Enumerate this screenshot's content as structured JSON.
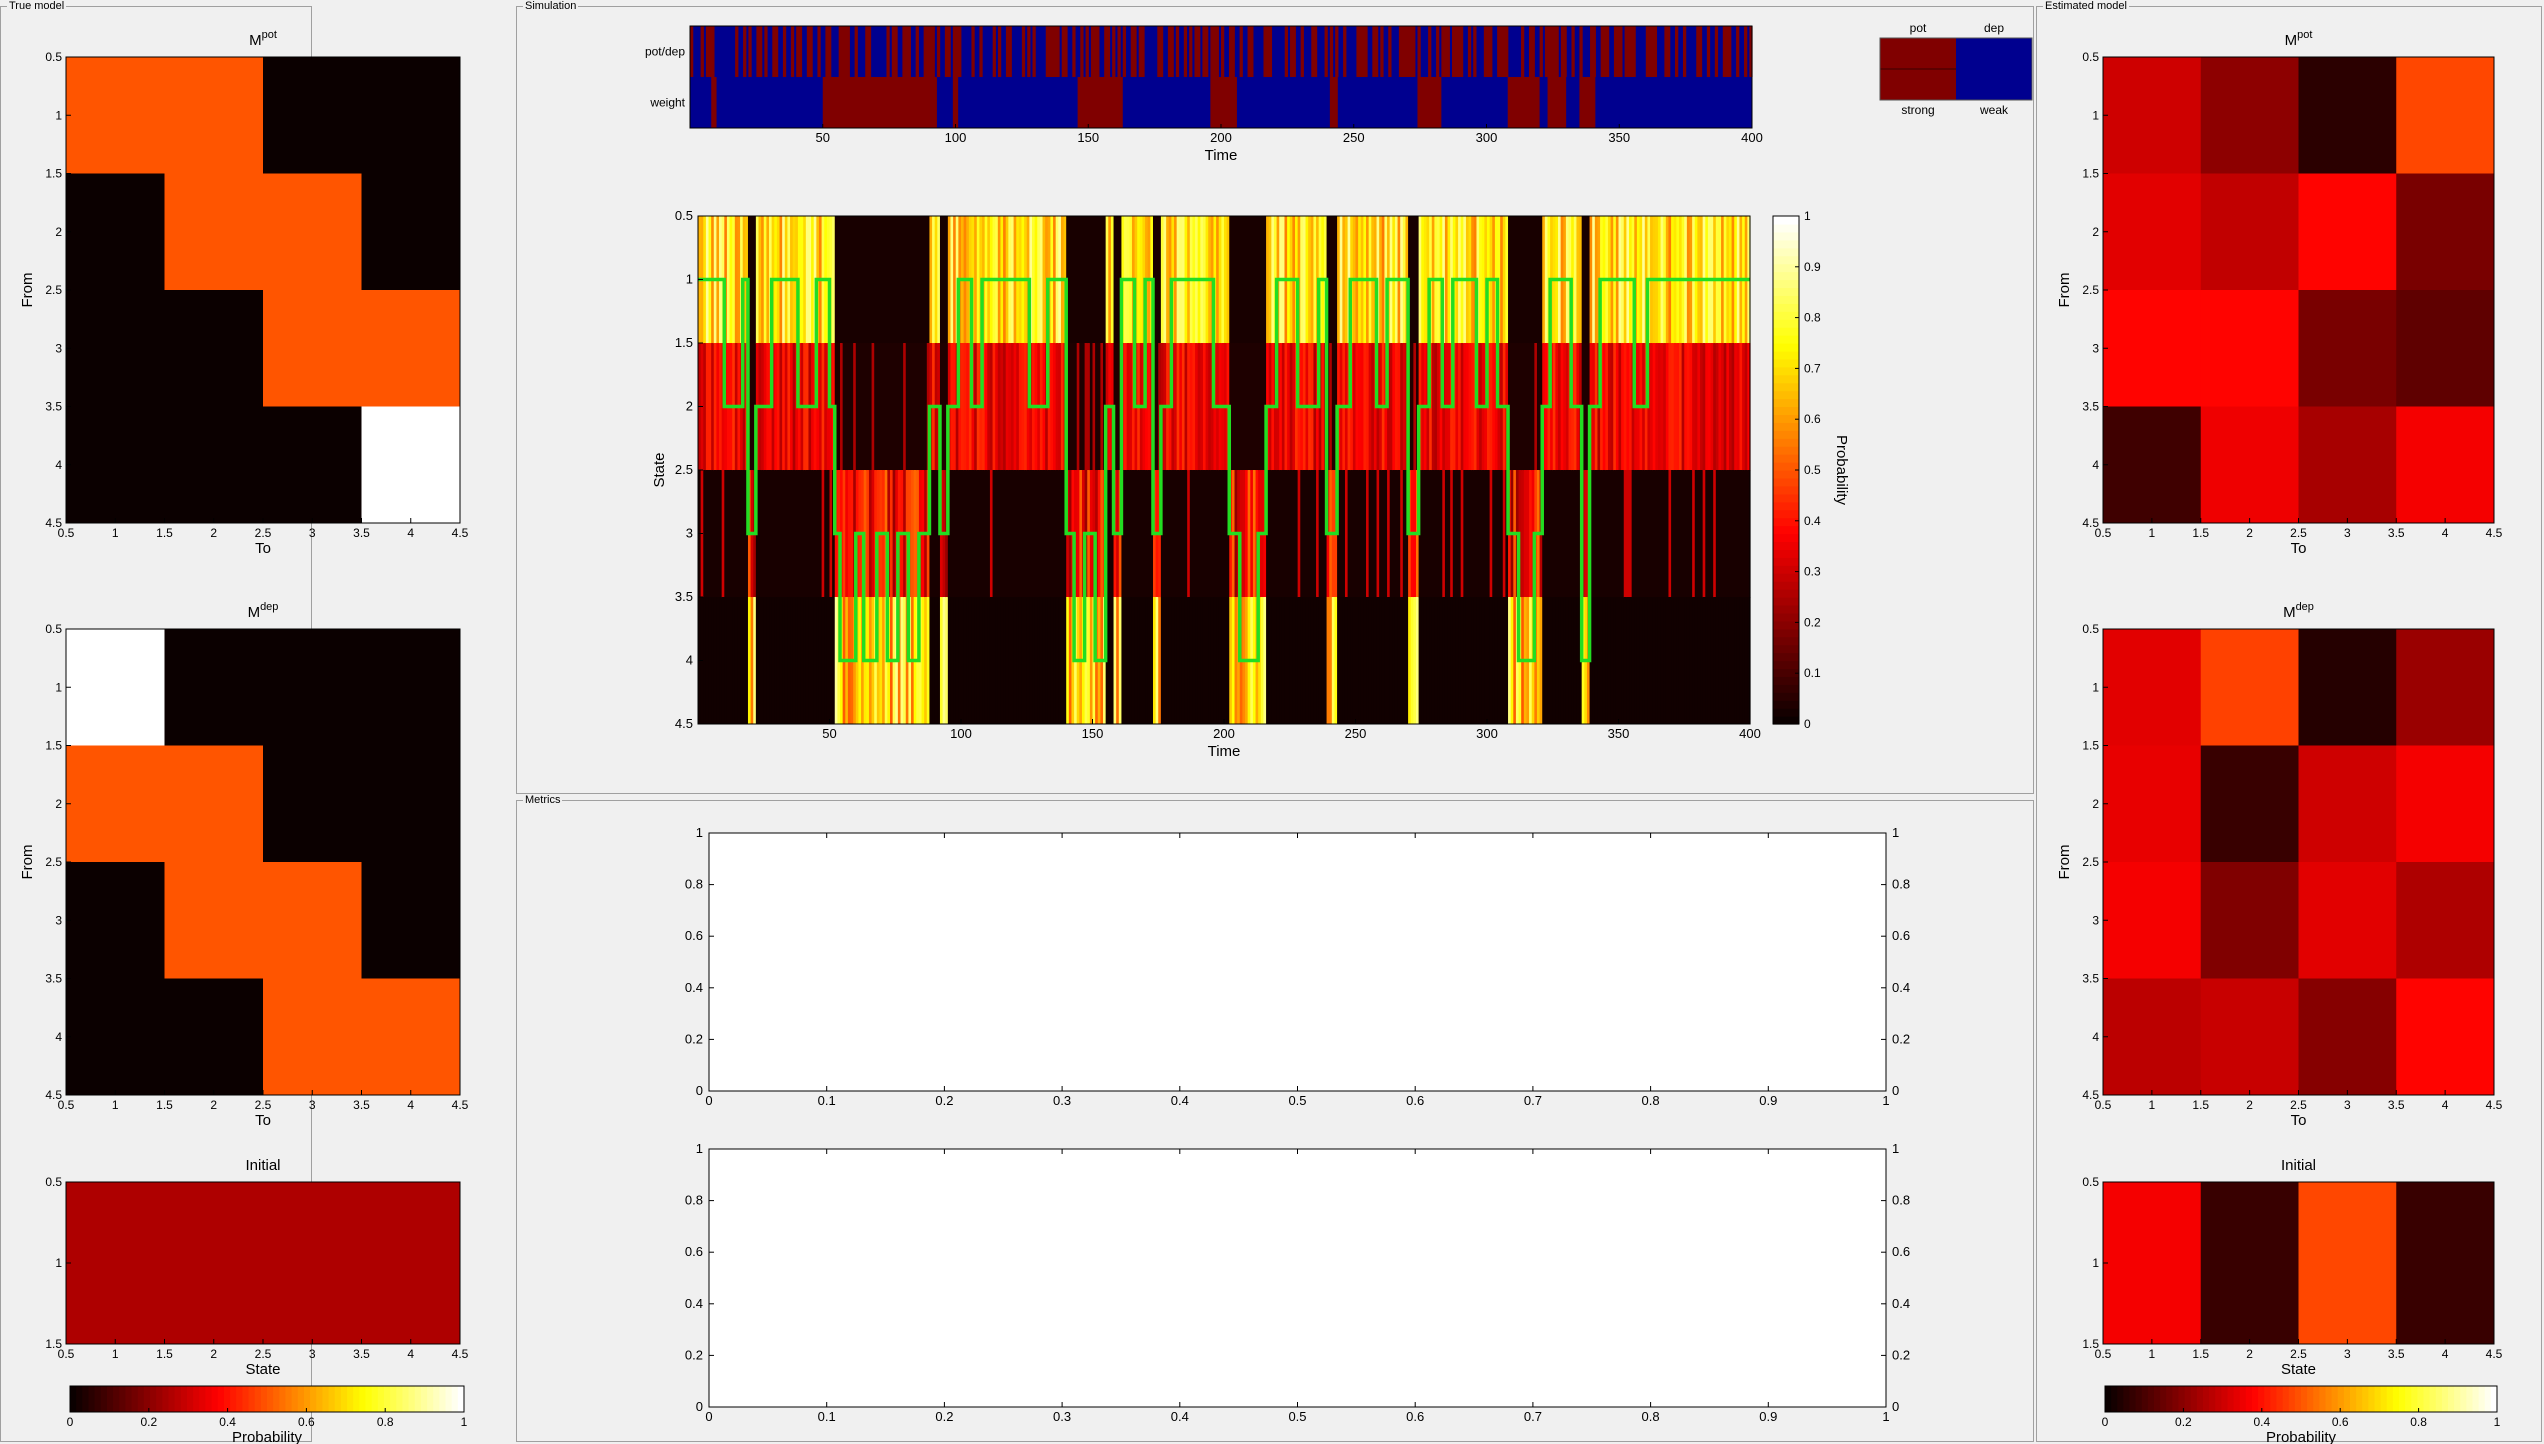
{
  "panels": {
    "true_model": "True model",
    "simulation": "Simulation",
    "estimated_model": "Estimated model",
    "metrics": "Metrics"
  },
  "labels": {
    "to": "To",
    "from": "From",
    "state": "State",
    "time": "Time",
    "probability": "Probability",
    "initial": "Initial",
    "mpot": "M",
    "mpot_sup": "pot",
    "mdep": "M",
    "mdep_sup": "dep",
    "potdep": "pot/dep",
    "weight": "weight",
    "leg_pot": "pot",
    "leg_dep": "dep",
    "leg_strong": "strong",
    "leg_weak": "weak"
  },
  "colors": {
    "pot": "#800000",
    "dep": "#00008f",
    "trace": "#22dd22"
  },
  "chart_data": [
    {
      "id": "true_mpot",
      "type": "heatmap",
      "title": "M^pot",
      "xlabel": "To",
      "ylabel": "From",
      "xlim": [
        0.5,
        4.5
      ],
      "ylim": [
        0.5,
        4.5
      ],
      "xticks": [
        "0.5",
        "1",
        "1.5",
        "2",
        "2.5",
        "3",
        "3.5",
        "4",
        "4.5"
      ],
      "yticks": [
        "0.5",
        "1",
        "1.5",
        "2",
        "2.5",
        "3",
        "3.5",
        "4",
        "4.5"
      ],
      "values": [
        [
          0.5,
          0.5,
          0,
          0
        ],
        [
          0,
          0.5,
          0.5,
          0
        ],
        [
          0,
          0,
          0.5,
          0.5
        ],
        [
          0,
          0,
          0,
          1
        ]
      ]
    },
    {
      "id": "true_mdep",
      "type": "heatmap",
      "title": "M^dep",
      "xlabel": "To",
      "ylabel": "From",
      "xlim": [
        0.5,
        4.5
      ],
      "ylim": [
        0.5,
        4.5
      ],
      "xticks": [
        "0.5",
        "1",
        "1.5",
        "2",
        "2.5",
        "3",
        "3.5",
        "4",
        "4.5"
      ],
      "yticks": [
        "0.5",
        "1",
        "1.5",
        "2",
        "2.5",
        "3",
        "3.5",
        "4",
        "4.5"
      ],
      "values": [
        [
          1,
          0,
          0,
          0
        ],
        [
          0.5,
          0.5,
          0,
          0
        ],
        [
          0,
          0.5,
          0.5,
          0
        ],
        [
          0,
          0,
          0.5,
          0.5
        ]
      ]
    },
    {
      "id": "true_initial",
      "type": "heatmap",
      "title": "Initial",
      "xlabel": "State",
      "xlim": [
        0.5,
        4.5
      ],
      "ylim": [
        0.5,
        1.5
      ],
      "xticks": [
        "0.5",
        "1",
        "1.5",
        "2",
        "2.5",
        "3",
        "3.5",
        "4",
        "4.5"
      ],
      "yticks": [
        "0.5",
        "1",
        "1.5"
      ],
      "values": [
        [
          0.25,
          0.25,
          0.25,
          0.25
        ]
      ]
    },
    {
      "id": "est_mpot",
      "type": "heatmap",
      "title": "M^pot",
      "xlabel": "To",
      "ylabel": "From",
      "xlim": [
        0.5,
        4.5
      ],
      "ylim": [
        0.5,
        4.5
      ],
      "xticks": [
        "0.5",
        "1",
        "1.5",
        "2",
        "2.5",
        "3",
        "3.5",
        "4",
        "4.5"
      ],
      "yticks": [
        "0.5",
        "1",
        "1.5",
        "2",
        "2.5",
        "3",
        "3.5",
        "4",
        "4.5"
      ],
      "values": [
        [
          0.3,
          0.2,
          0.05,
          0.48
        ],
        [
          0.33,
          0.28,
          0.38,
          0.17
        ],
        [
          0.38,
          0.38,
          0.17,
          0.13
        ],
        [
          0.08,
          0.35,
          0.24,
          0.36
        ]
      ]
    },
    {
      "id": "est_mdep",
      "type": "heatmap",
      "title": "M^dep",
      "xlabel": "To",
      "ylabel": "From",
      "xlim": [
        0.5,
        4.5
      ],
      "ylim": [
        0.5,
        4.5
      ],
      "xticks": [
        "0.5",
        "1",
        "1.5",
        "2",
        "2.5",
        "3",
        "3.5",
        "4",
        "4.5"
      ],
      "yticks": [
        "0.5",
        "1",
        "1.5",
        "2",
        "2.5",
        "3",
        "3.5",
        "4",
        "4.5"
      ],
      "values": [
        [
          0.33,
          0.47,
          0.04,
          0.22
        ],
        [
          0.34,
          0.07,
          0.3,
          0.36
        ],
        [
          0.36,
          0.18,
          0.33,
          0.25
        ],
        [
          0.27,
          0.29,
          0.19,
          0.38
        ]
      ]
    },
    {
      "id": "est_initial",
      "type": "heatmap",
      "title": "Initial",
      "xlabel": "State",
      "xlim": [
        0.5,
        4.5
      ],
      "ylim": [
        0.5,
        1.5
      ],
      "xticks": [
        "0.5",
        "1",
        "1.5",
        "2",
        "2.5",
        "3",
        "3.5",
        "4",
        "4.5"
      ],
      "yticks": [
        "0.5",
        "1",
        "1.5"
      ],
      "values": [
        [
          0.36,
          0.07,
          0.48,
          0.07
        ]
      ]
    },
    {
      "id": "colorbar",
      "type": "heatmap",
      "title": "",
      "label": "Probability",
      "range": [
        0,
        1
      ],
      "ticks": [
        "0",
        "0.2",
        "0.4",
        "0.6",
        "0.8",
        "1"
      ],
      "vticks": [
        "0",
        "0.1",
        "0.2",
        "0.3",
        "0.4",
        "0.5",
        "0.6",
        "0.7",
        "0.8",
        "0.9",
        "1"
      ]
    },
    {
      "id": "sim_raster",
      "type": "heatmap",
      "xlabel": "Time",
      "rows": [
        "pot/dep",
        "weight"
      ],
      "xlim": [
        0,
        400
      ],
      "xticks": [
        "50",
        "100",
        "150",
        "200",
        "250",
        "300",
        "350",
        "400"
      ],
      "weight_strong_intervals": [
        [
          8,
          10
        ],
        [
          50,
          93
        ],
        [
          99,
          101
        ],
        [
          146,
          163
        ],
        [
          196,
          206
        ],
        [
          241,
          244
        ],
        [
          274,
          283
        ],
        [
          308,
          320
        ],
        [
          323,
          330
        ],
        [
          335,
          341
        ]
      ]
    },
    {
      "id": "sim_state",
      "type": "line",
      "xlabel": "Time",
      "ylabel": "State",
      "xlim": [
        0,
        400
      ],
      "ylim": [
        0.5,
        4.5
      ],
      "xticks": [
        "50",
        "100",
        "150",
        "200",
        "250",
        "300",
        "350",
        "400"
      ],
      "yticks": [
        "0.5",
        "1",
        "1.5",
        "2",
        "2.5",
        "3",
        "3.5",
        "4",
        "4.5"
      ],
      "state_segments": [
        [
          0,
          1
        ],
        [
          10,
          2
        ],
        [
          17,
          1
        ],
        [
          19,
          3
        ],
        [
          22,
          2
        ],
        [
          28,
          1
        ],
        [
          38,
          2
        ],
        [
          45,
          1
        ],
        [
          50,
          2
        ],
        [
          52,
          3
        ],
        [
          54,
          4
        ],
        [
          60,
          3
        ],
        [
          63,
          4
        ],
        [
          68,
          3
        ],
        [
          72,
          4
        ],
        [
          76,
          3
        ],
        [
          80,
          4
        ],
        [
          84,
          3
        ],
        [
          88,
          2
        ],
        [
          92,
          3
        ],
        [
          95,
          2
        ],
        [
          99,
          1
        ],
        [
          104,
          2
        ],
        [
          108,
          1
        ],
        [
          126,
          2
        ],
        [
          133,
          1
        ],
        [
          140,
          3
        ],
        [
          143,
          4
        ],
        [
          147,
          3
        ],
        [
          151,
          4
        ],
        [
          155,
          2
        ],
        [
          158,
          3
        ],
        [
          161,
          1
        ],
        [
          166,
          2
        ],
        [
          170,
          1
        ],
        [
          173,
          3
        ],
        [
          176,
          2
        ],
        [
          180,
          1
        ],
        [
          196,
          2
        ],
        [
          202,
          3
        ],
        [
          206,
          4
        ],
        [
          213,
          3
        ],
        [
          216,
          2
        ],
        [
          220,
          1
        ],
        [
          228,
          2
        ],
        [
          236,
          1
        ],
        [
          239,
          3
        ],
        [
          243,
          2
        ],
        [
          248,
          1
        ],
        [
          258,
          2
        ],
        [
          262,
          1
        ],
        [
          270,
          3
        ],
        [
          274,
          2
        ],
        [
          278,
          1
        ],
        [
          283,
          2
        ],
        [
          287,
          1
        ],
        [
          296,
          2
        ],
        [
          300,
          1
        ],
        [
          304,
          2
        ],
        [
          308,
          3
        ],
        [
          312,
          4
        ],
        [
          318,
          3
        ],
        [
          321,
          2
        ],
        [
          324,
          1
        ],
        [
          332,
          2
        ],
        [
          336,
          4
        ],
        [
          339,
          2
        ],
        [
          343,
          1
        ],
        [
          356,
          2
        ],
        [
          361,
          1
        ],
        [
          400,
          1
        ]
      ]
    },
    {
      "id": "metric1",
      "type": "line",
      "xlim": [
        0,
        1
      ],
      "ylim": [
        0,
        1
      ],
      "xticks": [
        "0",
        "0.1",
        "0.2",
        "0.3",
        "0.4",
        "0.5",
        "0.6",
        "0.7",
        "0.8",
        "0.9",
        "1"
      ],
      "yticks": [
        "0",
        "0.2",
        "0.4",
        "0.6",
        "0.8",
        "1"
      ]
    },
    {
      "id": "metric2",
      "type": "line",
      "xlim": [
        0,
        1
      ],
      "ylim": [
        0,
        1
      ],
      "xticks": [
        "0",
        "0.1",
        "0.2",
        "0.3",
        "0.4",
        "0.5",
        "0.6",
        "0.7",
        "0.8",
        "0.9",
        "1"
      ],
      "yticks": [
        "0",
        "0.2",
        "0.4",
        "0.6",
        "0.8",
        "1"
      ]
    }
  ]
}
